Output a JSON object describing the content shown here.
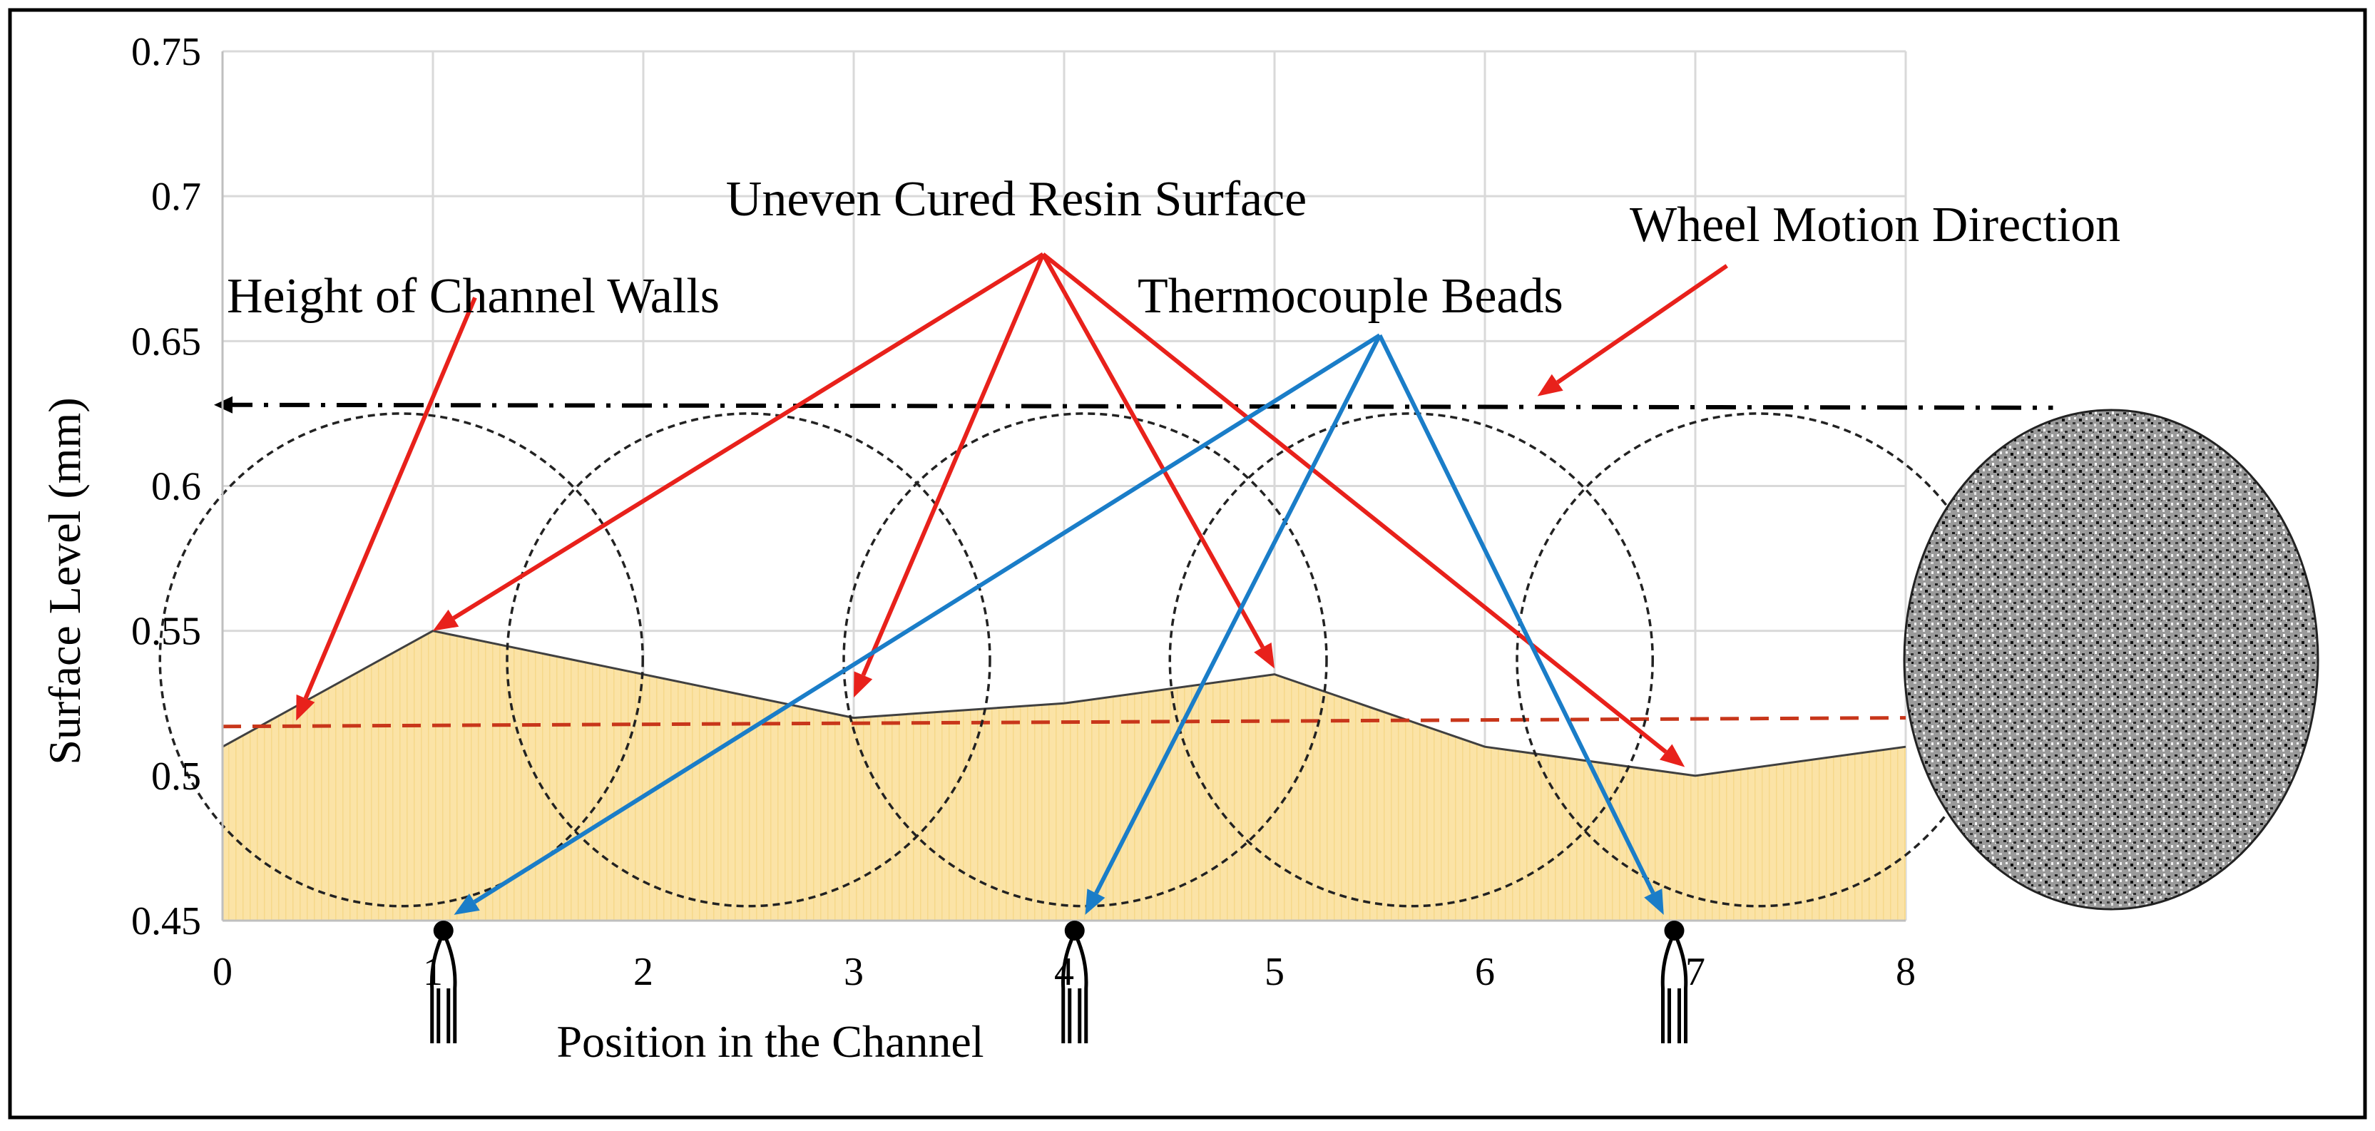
{
  "chart_data": {
    "type": "area",
    "title": "",
    "xlabel": "Position in the Channel",
    "ylabel": "Surface Level (mm)",
    "xlim": [
      0,
      8
    ],
    "ylim": [
      0.45,
      0.75
    ],
    "x_ticks": [
      0,
      1,
      2,
      3,
      4,
      5,
      6,
      7,
      8
    ],
    "x_tick_labels": [
      "0",
      "1",
      "2",
      "3",
      "4",
      "5",
      "6",
      "7",
      "8"
    ],
    "y_ticks": [
      0.45,
      0.5,
      0.55,
      0.6,
      0.65,
      0.7,
      0.75
    ],
    "y_tick_labels": [
      "0.45",
      "0.5",
      "0.55",
      "0.6",
      "0.65",
      "0.7",
      "0.75"
    ],
    "grid": true,
    "series": [
      {
        "kind": "area",
        "color": "#fbe3a6",
        "x": [
          0,
          1,
          3,
          4,
          5,
          6,
          7,
          8
        ],
        "values": [
          0.51,
          0.55,
          0.52,
          0.525,
          0.535,
          0.51,
          0.5,
          0.51
        ]
      },
      {
        "kind": "dashed-line",
        "color": "#c8361a",
        "x": [
          0,
          8
        ],
        "values": [
          0.517,
          0.52
        ]
      },
      {
        "kind": "dash-dot-line",
        "color": "#000000",
        "x": [
          0,
          8.7
        ],
        "values": [
          0.628,
          0.627
        ]
      }
    ],
    "wheel_positions": [
      0.85,
      2.5,
      4.1,
      5.65,
      7.3
    ],
    "wheel_radius": 0.085,
    "thermocouple_positions": [
      1.05,
      4.05,
      6.9
    ],
    "annotations": [
      {
        "text": "Uneven Cured Resin Surface",
        "color": "#e8211b",
        "tip": [
          3.9,
          0.68
        ],
        "targets": [
          [
            1.0,
            0.55
          ],
          [
            3.0,
            0.527
          ],
          [
            5.0,
            0.537
          ],
          [
            6.95,
            0.503
          ]
        ]
      },
      {
        "text": "Height of Channel Walls",
        "color": "#e8211b",
        "tip": [
          1.2,
          0.665
        ],
        "targets": [
          [
            0.35,
            0.519
          ]
        ]
      },
      {
        "text": "Thermocouple Beads",
        "color": "#1a7dc8",
        "tip": [
          5.5,
          0.652
        ],
        "targets": [
          [
            1.1,
            0.452
          ],
          [
            4.1,
            0.452
          ],
          [
            6.85,
            0.452
          ]
        ]
      },
      {
        "text": "Wheel Motion Direction",
        "color": "#e8211b",
        "tip": [
          7.15,
          0.676
        ],
        "targets": [
          [
            6.25,
            0.631
          ]
        ]
      }
    ]
  }
}
